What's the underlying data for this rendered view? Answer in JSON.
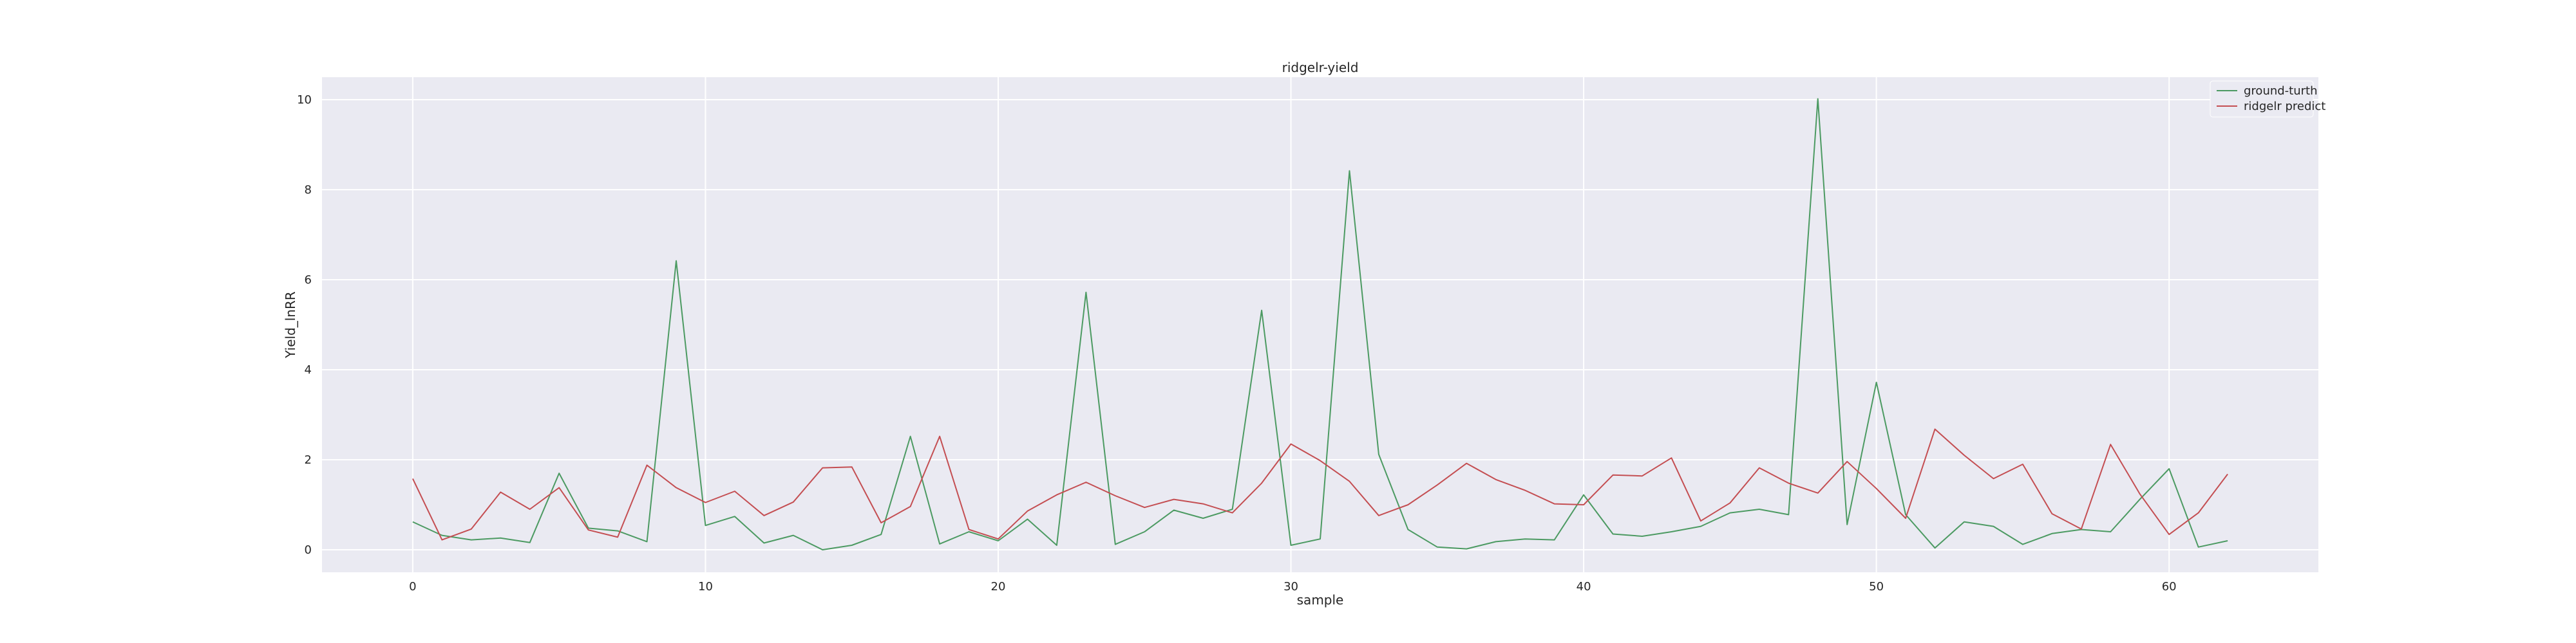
{
  "chart_data": {
    "type": "line",
    "title": "ridgelr-yield",
    "xlabel": "sample",
    "ylabel": "Yield_lnRR",
    "xlim": [
      -3.1,
      65.1
    ],
    "ylim": [
      -0.5,
      10.5
    ],
    "xticks": [
      0,
      10,
      20,
      30,
      40,
      50,
      60
    ],
    "yticks": [
      0,
      2,
      4,
      6,
      8,
      10
    ],
    "grid": true,
    "legend_position": "upper-right",
    "x": [
      0,
      1,
      2,
      3,
      4,
      5,
      6,
      7,
      8,
      9,
      10,
      11,
      12,
      13,
      14,
      15,
      16,
      17,
      18,
      19,
      20,
      21,
      22,
      23,
      24,
      25,
      26,
      27,
      28,
      29,
      30,
      31,
      32,
      33,
      34,
      35,
      36,
      37,
      38,
      39,
      40,
      41,
      42,
      43,
      44,
      45,
      46,
      47,
      48,
      49,
      50,
      51,
      52,
      53,
      54,
      55,
      56,
      57,
      58,
      59,
      60,
      61,
      62
    ],
    "series": [
      {
        "name": "ground-turth",
        "color": "#4c9a62",
        "values": [
          0.62,
          0.32,
          0.22,
          0.26,
          0.16,
          1.7,
          0.48,
          0.42,
          0.18,
          6.42,
          0.54,
          0.74,
          0.15,
          0.32,
          0.0,
          0.1,
          0.34,
          2.52,
          0.13,
          0.4,
          0.2,
          0.68,
          0.1,
          5.72,
          0.12,
          0.4,
          0.88,
          0.7,
          0.9,
          5.32,
          0.1,
          0.24,
          8.42,
          2.12,
          0.45,
          0.06,
          0.02,
          0.18,
          0.24,
          0.22,
          1.22,
          0.35,
          0.3,
          0.4,
          0.52,
          0.82,
          0.9,
          0.78,
          10.02,
          0.56,
          3.72,
          0.78,
          0.04,
          0.62,
          0.52,
          0.12,
          0.36,
          0.45,
          0.4,
          1.12,
          1.8,
          0.06,
          0.2
        ]
      },
      {
        "name": "ridgelr predict",
        "color": "#c44e52",
        "values": [
          1.58,
          0.22,
          0.46,
          1.28,
          0.9,
          1.38,
          0.44,
          0.28,
          1.88,
          1.38,
          1.05,
          1.3,
          0.76,
          1.06,
          1.82,
          1.84,
          0.6,
          0.96,
          2.52,
          0.45,
          0.24,
          0.86,
          1.22,
          1.5,
          1.2,
          0.94,
          1.12,
          1.02,
          0.82,
          1.48,
          2.35,
          1.98,
          1.52,
          0.76,
          1.0,
          1.44,
          1.92,
          1.56,
          1.32,
          1.02,
          1.0,
          1.66,
          1.64,
          2.04,
          0.64,
          1.04,
          1.82,
          1.48,
          1.26,
          1.96,
          1.36,
          0.7,
          2.68,
          2.1,
          1.58,
          1.9,
          0.8,
          0.46,
          2.34,
          1.24,
          0.34,
          0.82,
          1.68
        ]
      }
    ]
  }
}
